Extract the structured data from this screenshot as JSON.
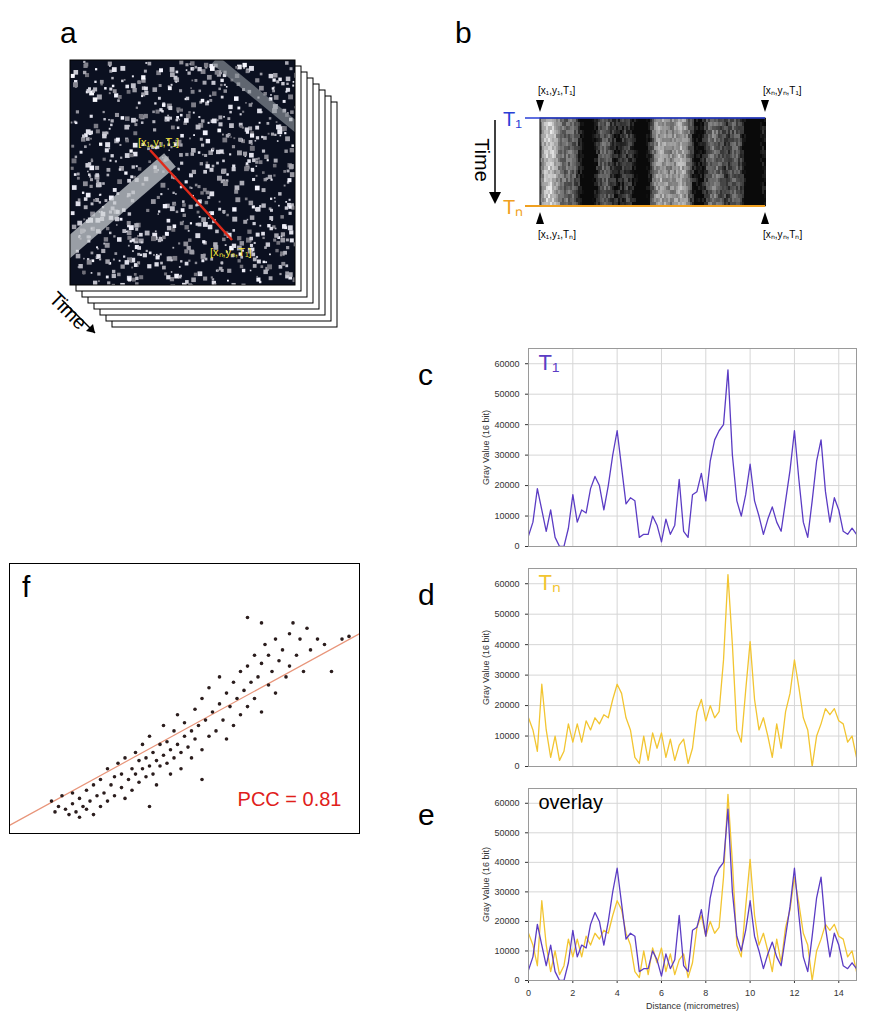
{
  "panels": [
    {
      "panel_label": "a",
      "point_labels": [
        "[x₁,y₁,T₁]",
        "[xₙ,yₙ,T₁]"
      ],
      "axis_label": "Time"
    },
    {
      "panel_label": "b",
      "axis_label": "Time",
      "row_labels": [
        "T₁",
        "Tₙ"
      ],
      "colors": [
        "#2a3fd6",
        "#f0a020"
      ],
      "corner_labels": [
        "[x₁,y₁,T₁]",
        "[xₙ,yₙ,T₁]",
        "[x₁,y₁,Tₙ]",
        "[xₙ,yₙ,Tₙ]"
      ]
    }
  ],
  "chart_data": [
    {
      "panel_label": "c",
      "type": "line",
      "x": [
        0,
        0.2,
        0.4,
        0.6,
        0.8,
        1,
        1.2,
        1.4,
        1.6,
        1.8,
        2,
        2.2,
        2.4,
        2.6,
        2.8,
        3,
        3.2,
        3.4,
        3.6,
        3.8,
        4,
        4.2,
        4.4,
        4.6,
        4.8,
        5,
        5.2,
        5.4,
        5.6,
        5.8,
        6,
        6.2,
        6.4,
        6.6,
        6.8,
        7,
        7.2,
        7.4,
        7.6,
        7.8,
        8,
        8.2,
        8.4,
        8.6,
        8.8,
        9,
        9.2,
        9.4,
        9.6,
        9.8,
        10,
        10.2,
        10.4,
        10.6,
        10.8,
        11,
        11.2,
        11.4,
        11.6,
        11.8,
        12,
        12.2,
        12.4,
        12.6,
        12.8,
        13,
        13.2,
        13.4,
        13.6,
        13.8,
        14,
        14.2,
        14.4,
        14.6,
        14.8
      ],
      "series": [
        {
          "name": "T₁",
          "color": "#5b3cc4",
          "values": [
            3500,
            8000,
            19000,
            12000,
            5000,
            12000,
            3000,
            0,
            0,
            6000,
            17000,
            8000,
            12000,
            11000,
            19000,
            23000,
            20000,
            12000,
            20000,
            30000,
            38000,
            26000,
            14000,
            16000,
            15000,
            3000,
            4000,
            4000,
            10000,
            7000,
            1500,
            9000,
            4000,
            7000,
            22000,
            5000,
            3000,
            17000,
            18000,
            24000,
            15000,
            28000,
            35000,
            38000,
            40000,
            58000,
            30000,
            15000,
            10000,
            17000,
            27000,
            15000,
            10000,
            4000,
            9000,
            13000,
            8000,
            5000,
            15000,
            25000,
            38000,
            22000,
            8000,
            3000,
            15000,
            28000,
            35000,
            18000,
            8000,
            16000,
            12000,
            5000,
            4000,
            6000,
            4000
          ]
        }
      ],
      "xlim": [
        0,
        14.8
      ],
      "ylim": [
        0,
        65000
      ],
      "xticks": [
        0,
        2,
        4,
        6,
        8,
        10,
        12,
        14
      ],
      "yticks": [
        0,
        10000,
        20000,
        30000,
        40000,
        50000,
        60000
      ],
      "ylabel": "Gray Value (16 bit)",
      "grid": true,
      "legend": "top-left",
      "tick_labels": "y"
    },
    {
      "panel_label": "d",
      "type": "line",
      "x": [
        0,
        0.2,
        0.4,
        0.6,
        0.8,
        1,
        1.2,
        1.4,
        1.6,
        1.8,
        2,
        2.2,
        2.4,
        2.6,
        2.8,
        3,
        3.2,
        3.4,
        3.6,
        3.8,
        4,
        4.2,
        4.4,
        4.6,
        4.8,
        5,
        5.2,
        5.4,
        5.6,
        5.8,
        6,
        6.2,
        6.4,
        6.6,
        6.8,
        7,
        7.2,
        7.4,
        7.6,
        7.8,
        8,
        8.2,
        8.4,
        8.6,
        8.8,
        9,
        9.2,
        9.4,
        9.6,
        9.8,
        10,
        10.2,
        10.4,
        10.6,
        10.8,
        11,
        11.2,
        11.4,
        11.6,
        11.8,
        12,
        12.2,
        12.4,
        12.6,
        12.8,
        13,
        13.2,
        13.4,
        13.6,
        13.8,
        14,
        14.2,
        14.4,
        14.6,
        14.8
      ],
      "series": [
        {
          "name": "Tₙ",
          "color": "#f2c531",
          "values": [
            16000,
            12000,
            5000,
            27000,
            12000,
            3000,
            10000,
            2000,
            5000,
            14000,
            8000,
            14000,
            8000,
            15000,
            12000,
            16000,
            14000,
            17000,
            16000,
            22000,
            27000,
            24000,
            16000,
            12000,
            3000,
            1000,
            10000,
            2000,
            11000,
            6000,
            11000,
            3000,
            9000,
            2000,
            7000,
            9000,
            1000,
            6000,
            18000,
            22000,
            15000,
            20000,
            16000,
            18000,
            35000,
            63000,
            40000,
            12000,
            8000,
            25000,
            41000,
            22000,
            12000,
            16000,
            10000,
            3000,
            14000,
            6000,
            18000,
            24000,
            35000,
            26000,
            16000,
            12000,
            0,
            10000,
            14000,
            19000,
            17000,
            19000,
            15000,
            14000,
            8000,
            10000,
            3000
          ]
        }
      ],
      "xlim": [
        0,
        14.8
      ],
      "ylim": [
        0,
        65000
      ],
      "xticks": [
        0,
        2,
        4,
        6,
        8,
        10,
        12,
        14
      ],
      "yticks": [
        0,
        10000,
        20000,
        30000,
        40000,
        50000,
        60000
      ],
      "ylabel": "Gray Value (16 bit)",
      "grid": true,
      "legend": "top-left",
      "tick_labels": "y"
    },
    {
      "panel_label": "e",
      "type": "line",
      "annotation": "overlay",
      "x": [
        0,
        0.2,
        0.4,
        0.6,
        0.8,
        1,
        1.2,
        1.4,
        1.6,
        1.8,
        2,
        2.2,
        2.4,
        2.6,
        2.8,
        3,
        3.2,
        3.4,
        3.6,
        3.8,
        4,
        4.2,
        4.4,
        4.6,
        4.8,
        5,
        5.2,
        5.4,
        5.6,
        5.8,
        6,
        6.2,
        6.4,
        6.6,
        6.8,
        7,
        7.2,
        7.4,
        7.6,
        7.8,
        8,
        8.2,
        8.4,
        8.6,
        8.8,
        9,
        9.2,
        9.4,
        9.6,
        9.8,
        10,
        10.2,
        10.4,
        10.6,
        10.8,
        11,
        11.2,
        11.4,
        11.6,
        11.8,
        12,
        12.2,
        12.4,
        12.6,
        12.8,
        13,
        13.2,
        13.4,
        13.6,
        13.8,
        14,
        14.2,
        14.4,
        14.6,
        14.8
      ],
      "series": [
        {
          "color": "#f2c531",
          "values": [
            16000,
            12000,
            5000,
            27000,
            12000,
            3000,
            10000,
            2000,
            5000,
            14000,
            8000,
            14000,
            8000,
            15000,
            12000,
            16000,
            14000,
            17000,
            16000,
            22000,
            27000,
            24000,
            16000,
            12000,
            3000,
            1000,
            10000,
            2000,
            11000,
            6000,
            11000,
            3000,
            9000,
            2000,
            7000,
            9000,
            1000,
            6000,
            18000,
            22000,
            15000,
            20000,
            16000,
            18000,
            35000,
            63000,
            40000,
            12000,
            8000,
            25000,
            41000,
            22000,
            12000,
            16000,
            10000,
            3000,
            14000,
            6000,
            18000,
            24000,
            35000,
            26000,
            16000,
            12000,
            0,
            10000,
            14000,
            19000,
            17000,
            19000,
            15000,
            14000,
            8000,
            10000,
            3000
          ]
        },
        {
          "color": "#5b3cc4",
          "values": [
            3500,
            8000,
            19000,
            12000,
            5000,
            12000,
            3000,
            0,
            0,
            6000,
            17000,
            8000,
            12000,
            11000,
            19000,
            23000,
            20000,
            12000,
            20000,
            30000,
            38000,
            26000,
            14000,
            16000,
            15000,
            3000,
            4000,
            4000,
            10000,
            7000,
            1500,
            9000,
            4000,
            7000,
            22000,
            5000,
            3000,
            17000,
            18000,
            24000,
            15000,
            28000,
            35000,
            38000,
            40000,
            58000,
            30000,
            15000,
            10000,
            17000,
            27000,
            15000,
            10000,
            4000,
            9000,
            13000,
            8000,
            5000,
            15000,
            25000,
            38000,
            22000,
            8000,
            3000,
            15000,
            28000,
            35000,
            18000,
            8000,
            16000,
            12000,
            5000,
            4000,
            6000,
            4000
          ]
        }
      ],
      "xlim": [
        0,
        14.8
      ],
      "ylim": [
        0,
        65000
      ],
      "xticks": [
        0,
        2,
        4,
        6,
        8,
        10,
        12,
        14
      ],
      "yticks": [
        0,
        10000,
        20000,
        30000,
        40000,
        50000,
        60000
      ],
      "xlabel": "Distance (micrometres)",
      "ylabel": "Gray Value (16 bit)",
      "grid": true
    },
    {
      "panel_label": "f",
      "type": "scatter",
      "color": "#2b1d1d",
      "x": [
        12,
        13,
        14,
        15,
        16,
        17,
        18,
        18,
        19,
        20,
        20,
        21,
        22,
        22,
        23,
        24,
        24,
        25,
        26,
        26,
        27,
        28,
        28,
        29,
        30,
        30,
        31,
        32,
        32,
        33,
        33,
        34,
        35,
        35,
        36,
        36,
        37,
        37,
        38,
        38,
        39,
        39,
        40,
        40,
        41,
        41,
        42,
        42,
        43,
        43,
        44,
        44,
        45,
        45,
        46,
        46,
        47,
        47,
        48,
        48,
        49,
        49,
        50,
        50,
        51,
        52,
        52,
        53,
        53,
        54,
        55,
        55,
        56,
        57,
        57,
        58,
        59,
        60,
        60,
        61,
        62,
        62,
        63,
        64,
        64,
        65,
        66,
        66,
        67,
        68,
        68,
        69,
        70,
        70,
        71,
        72,
        72,
        73,
        74,
        74,
        75,
        76,
        76,
        77,
        78,
        79,
        80,
        80,
        81,
        82,
        83,
        84,
        85,
        86,
        88,
        90,
        92,
        95,
        97,
        55,
        40,
        68,
        72
      ],
      "y": [
        12,
        8,
        10,
        14,
        9,
        7,
        11,
        15,
        8,
        13,
        6,
        10,
        16,
        9,
        12,
        7,
        18,
        14,
        10,
        20,
        15,
        12,
        24,
        18,
        14,
        21,
        26,
        17,
        22,
        13,
        28,
        20,
        24,
        16,
        30,
        22,
        19,
        27,
        24,
        33,
        21,
        28,
        25,
        36,
        22,
        30,
        27,
        18,
        33,
        25,
        29,
        40,
        26,
        34,
        31,
        22,
        38,
        28,
        33,
        44,
        30,
        24,
        36,
        41,
        32,
        38,
        28,
        46,
        35,
        40,
        31,
        50,
        42,
        36,
        54,
        45,
        38,
        48,
        58,
        42,
        52,
        35,
        47,
        56,
        40,
        50,
        60,
        44,
        53,
        62,
        47,
        56,
        66,
        50,
        58,
        63,
        45,
        70,
        55,
        66,
        60,
        72,
        52,
        64,
        68,
        58,
        74,
        62,
        78,
        66,
        72,
        60,
        76,
        68,
        72,
        70,
        60,
        72,
        73,
        20,
        10,
        80,
        78
      ],
      "fit": {
        "x": [
          0,
          100
        ],
        "y": [
          3,
          74
        ],
        "color": "#e8957a"
      },
      "annotation": {
        "text": "PCC = 0.81",
        "color": "#e0201a"
      },
      "xlim": [
        0,
        100
      ],
      "ylim": [
        0,
        100
      ],
      "tick_labels": false
    }
  ]
}
